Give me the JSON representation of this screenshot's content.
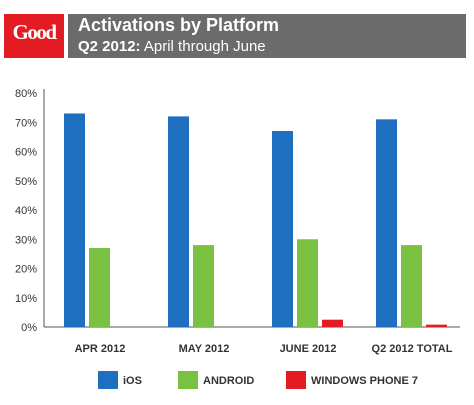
{
  "header": {
    "logo": "Good",
    "title": "Activations by Platform",
    "subtitle_strong": "Q2 2012:",
    "subtitle_rest": " April through June"
  },
  "colors": {
    "header_bg": "#6b6b6b",
    "logo_bg": "#e31b23"
  },
  "chart_data": {
    "type": "bar",
    "categories": [
      "APR 2012",
      "MAY 2012",
      "JUNE 2012",
      "Q2 2012 TOTAL"
    ],
    "series": [
      {
        "name": "iOS",
        "color": "#1f6fc0",
        "values": [
          73,
          72,
          67,
          71
        ]
      },
      {
        "name": "ANDROID",
        "color": "#7ac142",
        "values": [
          27,
          28,
          30,
          28
        ]
      },
      {
        "name": "WINDOWS PHONE 7",
        "color": "#e31b23",
        "values": [
          0,
          0,
          2.5,
          0.8
        ]
      }
    ],
    "ylim": [
      0,
      80
    ],
    "yticks": [
      "0%",
      "10%",
      "20%",
      "30%",
      "40%",
      "50%",
      "60%",
      "70%",
      "80%"
    ],
    "grid": false,
    "legend": "bottom"
  }
}
